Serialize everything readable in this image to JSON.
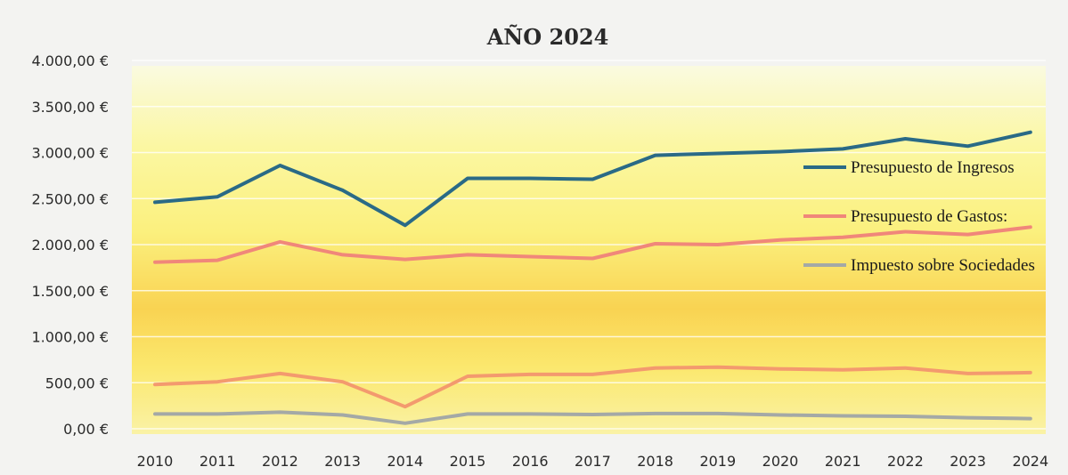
{
  "chart_data": {
    "type": "line",
    "title": "AÑO 2024",
    "xlabel": "",
    "ylabel": "",
    "x": [
      "2010",
      "2011",
      "2012",
      "2013",
      "2014",
      "2015",
      "2016",
      "2017",
      "2018",
      "2019",
      "2020",
      "2021",
      "2022",
      "2023",
      "2024"
    ],
    "ylim": [
      0,
      4000
    ],
    "y_ticks": [
      {
        "value": 0,
        "label": "0,00 €"
      },
      {
        "value": 500,
        "label": "500,00 €"
      },
      {
        "value": 1000,
        "label": "1.000,00 €"
      },
      {
        "value": 1500,
        "label": "1.500,00 €"
      },
      {
        "value": 2000,
        "label": "2.000,00 €"
      },
      {
        "value": 2500,
        "label": "2.500,00 €"
      },
      {
        "value": 3000,
        "label": "3.000,00 €"
      },
      {
        "value": 3500,
        "label": "3.500,00 €"
      },
      {
        "value": 4000,
        "label": "4.000,00 €"
      }
    ],
    "grid": true,
    "legend_position": "right",
    "series": [
      {
        "name": "Presupuesto de Ingresos",
        "color": "#2a6a86",
        "legend": true,
        "values": [
          2460,
          2520,
          2860,
          2590,
          2210,
          2720,
          2720,
          2710,
          2970,
          2990,
          3010,
          3040,
          3150,
          3070,
          3220
        ]
      },
      {
        "name": "Presupuesto de Gastos:",
        "color": "#f0877a",
        "legend": true,
        "values": [
          1810,
          1830,
          2030,
          1890,
          1840,
          1890,
          1870,
          1850,
          2010,
          2000,
          2050,
          2080,
          2140,
          2110,
          2190
        ]
      },
      {
        "name": "",
        "color": "#f39a6e",
        "legend": false,
        "values": [
          480,
          510,
          600,
          510,
          240,
          570,
          590,
          590,
          660,
          670,
          650,
          640,
          660,
          600,
          610
        ]
      },
      {
        "name": "Impuesto sobre Sociedades",
        "color": "#a4a9a6",
        "legend": true,
        "values": [
          160,
          160,
          180,
          150,
          60,
          160,
          160,
          155,
          165,
          165,
          150,
          140,
          135,
          120,
          110
        ]
      }
    ]
  }
}
